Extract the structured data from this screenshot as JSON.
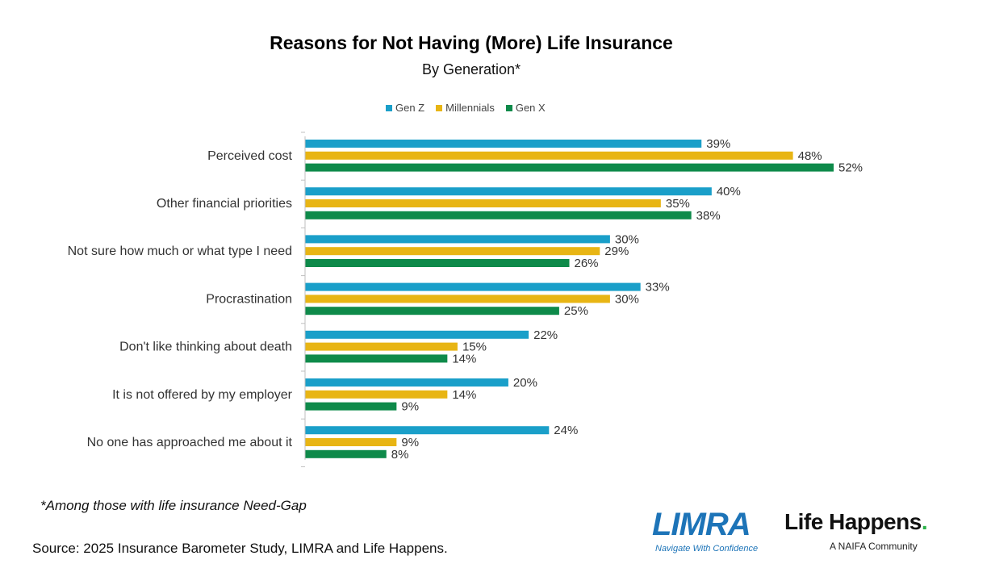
{
  "chart_data": {
    "type": "bar",
    "orientation": "horizontal",
    "title": "Reasons for Not Having (More) Life Insurance",
    "subtitle": "By Generation*",
    "categories": [
      "Perceived cost",
      "Other financial priorities",
      "Not sure how much or what type I need",
      "Procrastination",
      "Don't like thinking about death",
      "It is not offered by my employer",
      "No one has approached me about it"
    ],
    "series": [
      {
        "name": "Gen Z",
        "color": "#1a9fc9",
        "values": [
          39,
          40,
          30,
          33,
          22,
          20,
          24
        ]
      },
      {
        "name": "Millennials",
        "color": "#e8b514",
        "values": [
          48,
          35,
          29,
          30,
          15,
          14,
          9
        ]
      },
      {
        "name": "Gen X",
        "color": "#0e8a4a",
        "values": [
          52,
          38,
          26,
          25,
          14,
          9,
          8
        ]
      }
    ],
    "value_suffix": "%",
    "xlim": [
      0,
      52
    ],
    "legend_position": "top",
    "grid": false
  },
  "footnote": "*Among those with life insurance Need-Gap",
  "source": "Source: 2025 Insurance Barometer Study, LIMRA and Life Happens.",
  "logos": {
    "limra": {
      "name": "LIMRA",
      "tagline": "Navigate With Confidence",
      "color": "#1d74b8"
    },
    "life_happens": {
      "name": "Life Happens",
      "tagline": "A NAIFA Community",
      "dot_color": "#2db34a"
    }
  }
}
